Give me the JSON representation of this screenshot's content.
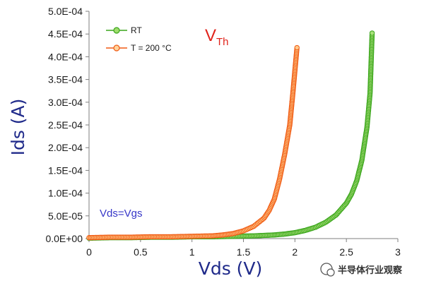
{
  "chart_data": {
    "type": "scatter",
    "xlabel": "Vds (V)",
    "ylabel": "Ids (A)",
    "xlim": [
      0,
      3
    ],
    "ylim": [
      0,
      0.0005
    ],
    "x_ticks": [
      "0",
      "0.5",
      "1",
      "1.5",
      "2",
      "2.5",
      "3"
    ],
    "x_tick_values": [
      0,
      0.5,
      1,
      1.5,
      2,
      2.5,
      3
    ],
    "y_ticks": [
      "0.0E+00",
      "5.0E-05",
      "1.0E-04",
      "1.5E-04",
      "2.0E-04",
      "2.5E-04",
      "3.0E-04",
      "3.5E-04",
      "4.0E-04",
      "4.5E-04",
      "5.0E-04"
    ],
    "y_tick_values": [
      0,
      5e-05,
      0.0001,
      0.00015,
      0.0002,
      0.00025,
      0.0003,
      0.00035,
      0.0004,
      0.00045,
      0.0005
    ],
    "grid": false,
    "legend_position": "top-left",
    "series": [
      {
        "name": "RT",
        "color": "#3aa51b",
        "x": [
          0,
          0.2,
          0.4,
          0.6,
          0.8,
          1.0,
          1.2,
          1.4,
          1.6,
          1.8,
          1.9,
          2.0,
          2.1,
          2.2,
          2.3,
          2.4,
          2.5,
          2.55,
          2.6,
          2.65,
          2.7,
          2.73,
          2.75
        ],
        "y": [
          1e-06,
          2e-06,
          2e-06,
          3e-06,
          3e-06,
          4e-06,
          4e-06,
          5e-06,
          6e-06,
          8e-06,
          1e-05,
          1.3e-05,
          1.8e-05,
          2.5e-05,
          3.6e-05,
          5.2e-05,
          7.8e-05,
          9.8e-05,
          0.000127,
          0.000172,
          0.000245,
          0.00032,
          0.000452
        ]
      },
      {
        "name": "T = 200 °C",
        "color": "#f05a12",
        "x": [
          0,
          0.2,
          0.4,
          0.6,
          0.8,
          1.0,
          1.2,
          1.3,
          1.4,
          1.5,
          1.6,
          1.7,
          1.75,
          1.8,
          1.85,
          1.9,
          1.95,
          1.98,
          2.0,
          2.02
        ],
        "y": [
          2e-06,
          3e-06,
          3e-06,
          4e-06,
          4e-06,
          5e-06,
          6e-06,
          8e-06,
          1.1e-05,
          1.7e-05,
          2.7e-05,
          4.5e-05,
          6.2e-05,
          8.7e-05,
          0.00013,
          0.000185,
          0.00025,
          0.00032,
          0.00037,
          0.00042
        ]
      }
    ]
  },
  "annotations": {
    "vds_vgs": "Vds=Vgs",
    "vth_main": "V",
    "vth_sub": "Th"
  },
  "watermark": {
    "text": "半导体行业观察"
  }
}
